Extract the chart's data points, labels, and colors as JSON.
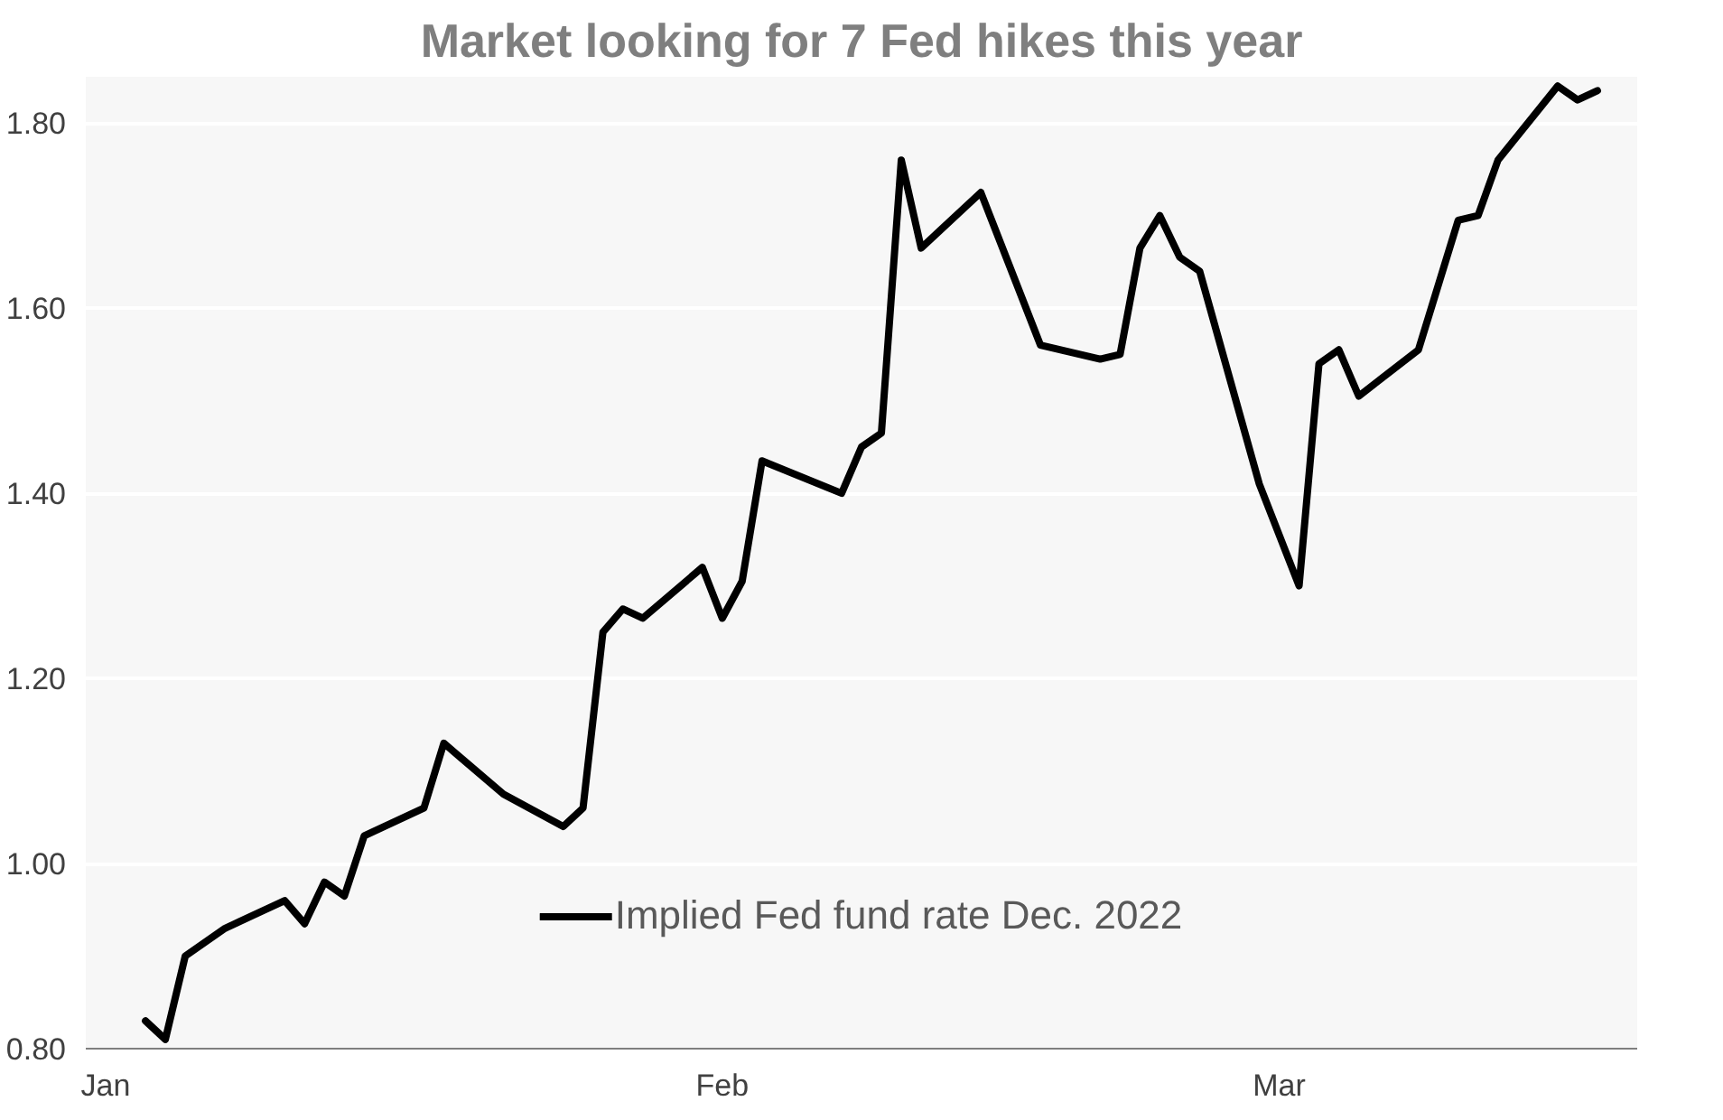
{
  "chart_data": {
    "type": "line",
    "title": "Market looking for 7 Fed hikes this year",
    "x": [
      "2022-01-03",
      "2022-01-04",
      "2022-01-05",
      "2022-01-07",
      "2022-01-10",
      "2022-01-11",
      "2022-01-12",
      "2022-01-13",
      "2022-01-14",
      "2022-01-17",
      "2022-01-18",
      "2022-01-21",
      "2022-01-24",
      "2022-01-25",
      "2022-01-26",
      "2022-01-27",
      "2022-01-28",
      "2022-01-31",
      "2022-02-01",
      "2022-02-02",
      "2022-02-03",
      "2022-02-07",
      "2022-02-08",
      "2022-02-09",
      "2022-02-10",
      "2022-02-11",
      "2022-02-14",
      "2022-02-17",
      "2022-02-20",
      "2022-02-21",
      "2022-02-22",
      "2022-02-23",
      "2022-02-24",
      "2022-02-25",
      "2022-02-28",
      "2022-03-02",
      "2022-03-03",
      "2022-03-04",
      "2022-03-05",
      "2022-03-08",
      "2022-03-10",
      "2022-03-11",
      "2022-03-12",
      "2022-03-15",
      "2022-03-16",
      "2022-03-17"
    ],
    "series": [
      {
        "name": "Implied Fed fund rate Dec. 2022",
        "color": "#000000",
        "values": [
          0.83,
          0.81,
          0.9,
          0.93,
          0.96,
          0.935,
          0.98,
          0.965,
          1.03,
          1.06,
          1.13,
          1.075,
          1.04,
          1.06,
          1.25,
          1.275,
          1.265,
          1.32,
          1.265,
          1.305,
          1.435,
          1.4,
          1.45,
          1.465,
          1.76,
          1.665,
          1.725,
          1.56,
          1.545,
          1.55,
          1.665,
          1.7,
          1.655,
          1.64,
          1.41,
          1.3,
          1.54,
          1.555,
          1.505,
          1.555,
          1.695,
          1.7,
          1.76,
          1.84,
          1.825,
          1.835
        ]
      }
    ],
    "xlim": [
      "2021-12-31",
      "2022-03-19"
    ],
    "xticks": [
      {
        "value": "2022-01-01",
        "label": "Jan"
      },
      {
        "value": "2022-02-01",
        "label": "Feb"
      },
      {
        "value": "2022-03-01",
        "label": "Mar"
      }
    ],
    "ylim": [
      0.8,
      1.85
    ],
    "yticks": [
      {
        "value": 0.8,
        "label": "0.80"
      },
      {
        "value": 1.0,
        "label": "1.00"
      },
      {
        "value": 1.2,
        "label": "1.20"
      },
      {
        "value": 1.4,
        "label": "1.40"
      },
      {
        "value": 1.6,
        "label": "1.60"
      },
      {
        "value": 1.8,
        "label": "1.80"
      }
    ],
    "grid": "y",
    "legend": "bottom",
    "marker": "none",
    "line_style": "solid"
  }
}
